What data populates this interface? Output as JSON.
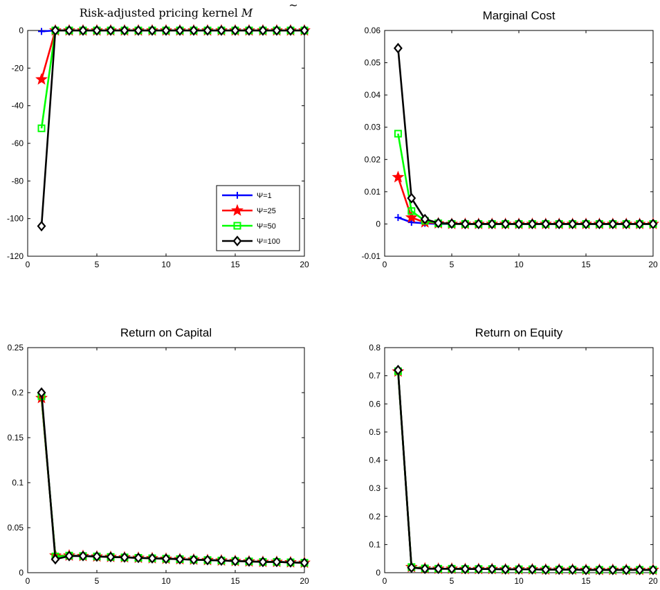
{
  "figure": {
    "legend_labels": [
      "Ψ=1",
      "Ψ=25",
      "Ψ=50",
      "Ψ=100"
    ],
    "colors": {
      "Ψ=1": "#0000ff",
      "Ψ=25": "#ff0000",
      "Ψ=50": "#00ff00",
      "Ψ=100": "#000000"
    },
    "markers": {
      "Ψ=1": "plus-marker",
      "Ψ=25": "star-marker",
      "Ψ=50": "square-marker",
      "Ψ=100": "diamond-marker"
    }
  },
  "chart_data": [
    {
      "type": "line",
      "title": "Risk-adjusted pricing kernel M̃",
      "title_main": "Risk-adjusted pricing kernel ",
      "title_symbol": "M",
      "title_accent": "~",
      "xlim": [
        0,
        20
      ],
      "ylim": [
        -120,
        0
      ],
      "xticks": [
        0,
        5,
        10,
        15,
        20
      ],
      "yticks": [
        0,
        -20,
        -40,
        -60,
        -80,
        -100,
        -120
      ],
      "legend": "lower-right",
      "x": [
        1,
        2,
        3,
        4,
        5,
        6,
        7,
        8,
        9,
        10,
        11,
        12,
        13,
        14,
        15,
        16,
        17,
        18,
        19,
        20
      ],
      "series": [
        {
          "name": "Ψ=1",
          "values": [
            -0.5,
            0,
            0,
            0,
            0,
            0,
            0,
            0,
            0,
            0,
            0,
            0,
            0,
            0,
            0,
            0,
            0,
            0,
            0,
            0
          ]
        },
        {
          "name": "Ψ=25",
          "values": [
            -26,
            0,
            0,
            0,
            0,
            0,
            0,
            0,
            0,
            0,
            0,
            0,
            0,
            0,
            0,
            0,
            0,
            0,
            0,
            0
          ]
        },
        {
          "name": "Ψ=50",
          "values": [
            -52,
            0,
            0,
            0,
            0,
            0,
            0,
            0,
            0,
            0,
            0,
            0,
            0,
            0,
            0,
            0,
            0,
            0,
            0,
            0
          ]
        },
        {
          "name": "Ψ=100",
          "values": [
            -104,
            0,
            0,
            0,
            0,
            0,
            0,
            0,
            0,
            0,
            0,
            0,
            0,
            0,
            0,
            0,
            0,
            0,
            0,
            0
          ]
        }
      ]
    },
    {
      "type": "line",
      "title": "Marginal Cost",
      "xlim": [
        0,
        20
      ],
      "ylim": [
        -0.01,
        0.06
      ],
      "xticks": [
        0,
        5,
        10,
        15,
        20
      ],
      "yticks": [
        -0.01,
        0,
        0.01,
        0.02,
        0.03,
        0.04,
        0.05,
        0.06
      ],
      "ytick_labels": [
        "-0.01",
        "0",
        "0.01",
        "0.02",
        "0.03",
        "0.04",
        "0.05",
        "0.06"
      ],
      "x": [
        1,
        2,
        3,
        4,
        5,
        6,
        7,
        8,
        9,
        10,
        11,
        12,
        13,
        14,
        15,
        16,
        17,
        18,
        19,
        20
      ],
      "series": [
        {
          "name": "Ψ=1",
          "values": [
            0.002,
            0.0005,
            0.0002,
            0,
            0,
            0,
            0,
            0,
            0,
            0,
            0,
            0,
            0,
            0,
            0,
            0,
            0,
            0,
            0,
            0
          ]
        },
        {
          "name": "Ψ=25",
          "values": [
            0.0145,
            0.002,
            0.0005,
            0.0002,
            0,
            0,
            0,
            0,
            0,
            0,
            0,
            0,
            0,
            0,
            0,
            0,
            0,
            0,
            0,
            0
          ]
        },
        {
          "name": "Ψ=50",
          "values": [
            0.028,
            0.004,
            0.001,
            0.0002,
            0,
            0,
            0,
            0,
            0,
            0,
            0,
            0,
            0,
            0,
            0,
            0,
            0,
            0,
            0,
            0
          ]
        },
        {
          "name": "Ψ=100",
          "values": [
            0.0545,
            0.008,
            0.0015,
            0.0003,
            0.0001,
            0,
            0,
            0,
            0,
            0,
            0,
            0,
            0,
            0,
            0,
            0,
            0,
            0,
            0,
            0
          ]
        }
      ]
    },
    {
      "type": "line",
      "title": "Return on Capital",
      "xlim": [
        0,
        20
      ],
      "ylim": [
        0,
        0.25
      ],
      "xticks": [
        0,
        5,
        10,
        15,
        20
      ],
      "yticks": [
        0,
        0.05,
        0.1,
        0.15,
        0.2,
        0.25
      ],
      "ytick_labels": [
        "0",
        "0.05",
        "0.1",
        "0.15",
        "0.2",
        "0.25"
      ],
      "x": [
        1,
        2,
        3,
        4,
        5,
        6,
        7,
        8,
        9,
        10,
        11,
        12,
        13,
        14,
        15,
        16,
        17,
        18,
        19,
        20
      ],
      "series": [
        {
          "name": "Ψ=1",
          "values": [
            0.195,
            0.019,
            0.019,
            0.0185,
            0.018,
            0.0175,
            0.017,
            0.0165,
            0.016,
            0.0155,
            0.015,
            0.0145,
            0.014,
            0.0135,
            0.013,
            0.0125,
            0.012,
            0.012,
            0.0115,
            0.011
          ]
        },
        {
          "name": "Ψ=25",
          "values": [
            0.194,
            0.019,
            0.019,
            0.0185,
            0.018,
            0.0175,
            0.017,
            0.0165,
            0.016,
            0.0155,
            0.015,
            0.0145,
            0.014,
            0.0135,
            0.013,
            0.0125,
            0.012,
            0.012,
            0.0115,
            0.011
          ]
        },
        {
          "name": "Ψ=50",
          "values": [
            0.196,
            0.018,
            0.019,
            0.0185,
            0.018,
            0.0175,
            0.017,
            0.0165,
            0.016,
            0.0155,
            0.015,
            0.0145,
            0.014,
            0.0135,
            0.013,
            0.0125,
            0.012,
            0.012,
            0.0115,
            0.011
          ]
        },
        {
          "name": "Ψ=100",
          "values": [
            0.2,
            0.015,
            0.0185,
            0.0185,
            0.018,
            0.0175,
            0.017,
            0.0165,
            0.016,
            0.0155,
            0.015,
            0.0145,
            0.014,
            0.0135,
            0.013,
            0.0125,
            0.012,
            0.012,
            0.0115,
            0.011
          ]
        }
      ]
    },
    {
      "type": "line",
      "title": "Return on Equity",
      "xlim": [
        0,
        20
      ],
      "ylim": [
        0,
        0.8
      ],
      "xticks": [
        0,
        5,
        10,
        15,
        20
      ],
      "yticks": [
        0,
        0.1,
        0.2,
        0.3,
        0.4,
        0.5,
        0.6,
        0.7,
        0.8
      ],
      "ytick_labels": [
        "0",
        "0.1",
        "0.2",
        "0.3",
        "0.4",
        "0.5",
        "0.6",
        "0.7",
        "0.8"
      ],
      "x": [
        1,
        2,
        3,
        4,
        5,
        6,
        7,
        8,
        9,
        10,
        11,
        12,
        13,
        14,
        15,
        16,
        17,
        18,
        19,
        20
      ],
      "series": [
        {
          "name": "Ψ=1",
          "values": [
            0.715,
            0.02,
            0.015,
            0.014,
            0.014,
            0.013,
            0.013,
            0.013,
            0.012,
            0.012,
            0.012,
            0.011,
            0.011,
            0.011,
            0.01,
            0.01,
            0.01,
            0.01,
            0.01,
            0.01
          ]
        },
        {
          "name": "Ψ=25",
          "values": [
            0.715,
            0.02,
            0.015,
            0.014,
            0.014,
            0.013,
            0.013,
            0.013,
            0.012,
            0.012,
            0.012,
            0.011,
            0.011,
            0.011,
            0.01,
            0.01,
            0.01,
            0.01,
            0.01,
            0.01
          ]
        },
        {
          "name": "Ψ=50",
          "values": [
            0.716,
            0.02,
            0.015,
            0.014,
            0.014,
            0.013,
            0.013,
            0.013,
            0.012,
            0.012,
            0.012,
            0.011,
            0.011,
            0.011,
            0.01,
            0.01,
            0.01,
            0.01,
            0.01,
            0.01
          ]
        },
        {
          "name": "Ψ=100",
          "values": [
            0.72,
            0.018,
            0.014,
            0.014,
            0.014,
            0.013,
            0.013,
            0.013,
            0.012,
            0.012,
            0.012,
            0.011,
            0.011,
            0.011,
            0.01,
            0.01,
            0.01,
            0.01,
            0.01,
            0.01
          ]
        }
      ]
    }
  ]
}
